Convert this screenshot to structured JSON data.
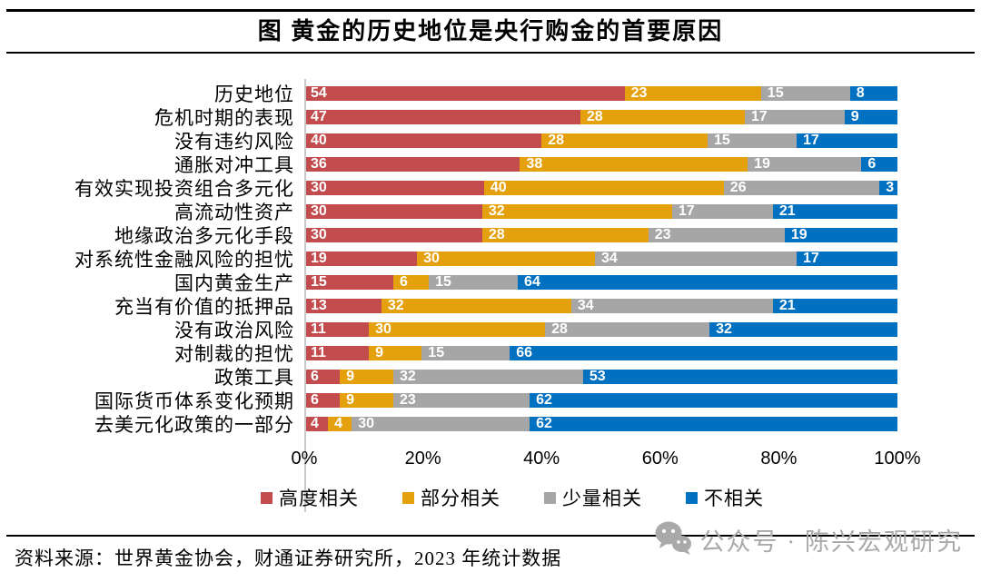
{
  "title": "图  黄金的历史地位是央行购金的首要原因",
  "source": "资料来源：世界黄金协会，财通证券研究所，2023 年统计数据",
  "watermark": {
    "text": "公众号 · 陈兴宏观研究",
    "icon": "wechat-icon"
  },
  "colors": {
    "highly_related": "#c24b4d",
    "partially_related": "#e5a00d",
    "slightly_related": "#a6a6a6",
    "not_related": "#0070c0",
    "axis_line": "#c9c9c9",
    "watermark": "#a9a9a9"
  },
  "chart_data": {
    "type": "bar",
    "stacked": true,
    "orientation": "horizontal",
    "unit": "%",
    "title": "图  黄金的历史地位是央行购金的首要原因",
    "xlabel": "",
    "ylabel": "",
    "xlim": [
      0,
      100
    ],
    "xticks": [
      "0%",
      "20%",
      "40%",
      "60%",
      "80%",
      "100%"
    ],
    "grid": false,
    "legend_position": "bottom",
    "value_labels": "inside-start-white",
    "categories": [
      "历史地位",
      "危机时期的表现",
      "没有违约风险",
      "通胀对冲工具",
      "有效实现投资组合多元化",
      "高流动性资产",
      "地缘政治多元化手段",
      "对系统性金融风险的担忧",
      "国内黄金生产",
      "充当有价值的抵押品",
      "没有政治风险",
      "对制裁的担忧",
      "政策工具",
      "国际货币体系变化预期",
      "去美元化政策的一部分"
    ],
    "series": [
      {
        "name": "高度相关",
        "key": "highly-related",
        "color": "#c24b4d",
        "values": [
          54,
          47,
          40,
          36,
          30,
          30,
          30,
          19,
          15,
          13,
          11,
          11,
          6,
          6,
          4
        ]
      },
      {
        "name": "部分相关",
        "key": "partially-related",
        "color": "#e5a00d",
        "values": [
          23,
          28,
          28,
          38,
          40,
          32,
          28,
          30,
          6,
          32,
          30,
          9,
          9,
          9,
          4
        ]
      },
      {
        "name": "少量相关",
        "key": "slightly-related",
        "color": "#a6a6a6",
        "values": [
          15,
          17,
          15,
          19,
          26,
          17,
          23,
          34,
          15,
          34,
          28,
          15,
          32,
          23,
          30
        ]
      },
      {
        "name": "不相关",
        "key": "not-related",
        "color": "#0070c0",
        "values": [
          8,
          9,
          17,
          6,
          3,
          21,
          19,
          17,
          64,
          21,
          32,
          66,
          53,
          62,
          62
        ]
      }
    ]
  }
}
